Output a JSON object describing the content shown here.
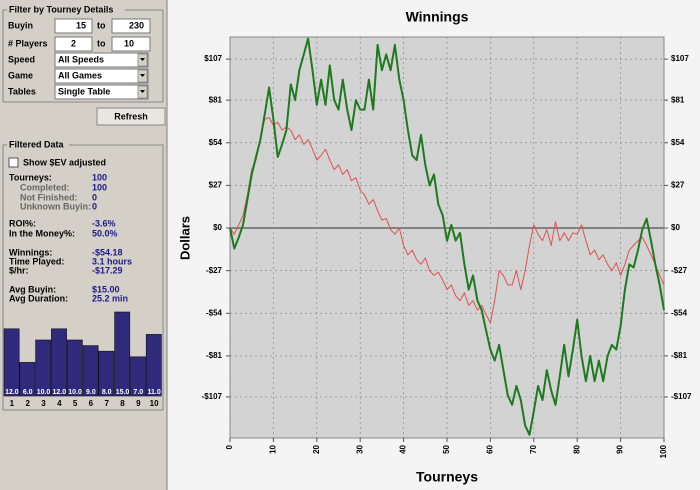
{
  "filter": {
    "title": "Filter by Tourney Details",
    "rows": [
      {
        "label": "Buyin",
        "from": "15",
        "to_label": "to",
        "to": "230"
      },
      {
        "label": "# Players",
        "from": "2",
        "to_label": "to",
        "to": "10"
      }
    ],
    "selects": [
      {
        "label": "Speed",
        "value": "All Speeds"
      },
      {
        "label": "Game",
        "value": "All Games"
      },
      {
        "label": "Tables",
        "value": "Single Table"
      }
    ],
    "refresh": "Refresh"
  },
  "filtered": {
    "title": "Filtered Data",
    "checkbox": "Show $EV adjusted",
    "stats": [
      {
        "label": "Tourneys:",
        "value": "100"
      },
      {
        "label": "Completed:",
        "value": "100"
      },
      {
        "label": "Not Finished:",
        "value": "0"
      },
      {
        "label": "Unknown Buyin:",
        "value": "0"
      },
      {
        "label": "ROI%:",
        "value": "-3.6%"
      },
      {
        "label": "In the Money%:",
        "value": "50.0%"
      },
      {
        "label": "Winnings:",
        "value": "-$54.18"
      },
      {
        "label": "Time Played:",
        "value": "3.1 hours"
      },
      {
        "label": "$/hr:",
        "value": "-$17.29"
      },
      {
        "label": "Avg Buyin:",
        "value": "$15.00"
      },
      {
        "label": "Avg Duration:",
        "value": "25.2 min"
      }
    ],
    "histogram": {
      "type": "bar",
      "categories": [
        "1",
        "2",
        "3",
        "4",
        "5",
        "6",
        "7",
        "8",
        "9",
        "10"
      ],
      "values": [
        12,
        6,
        10,
        12,
        10,
        9,
        8,
        15,
        7,
        11
      ],
      "value_labels": [
        "12.0",
        "6.0",
        "10.0",
        "12.0",
        "10.0",
        "9.0",
        "8.0",
        "15.0",
        "7.0",
        "11.0"
      ],
      "color": "#2f2a7c"
    }
  },
  "chart_data": {
    "type": "line",
    "title": "Winnings",
    "x_label": "Tourneys",
    "y_label": "Dollars",
    "x": [
      0,
      1,
      2,
      3,
      4,
      5,
      6,
      7,
      8,
      9,
      10,
      11,
      12,
      13,
      14,
      15,
      16,
      17,
      18,
      19,
      20,
      21,
      22,
      23,
      24,
      25,
      26,
      27,
      28,
      29,
      30,
      31,
      32,
      33,
      34,
      35,
      36,
      37,
      38,
      39,
      40,
      41,
      42,
      43,
      44,
      45,
      46,
      47,
      48,
      49,
      50,
      51,
      52,
      53,
      54,
      55,
      56,
      57,
      58,
      59,
      60,
      61,
      62,
      63,
      64,
      65,
      66,
      67,
      68,
      69,
      70,
      71,
      72,
      73,
      74,
      75,
      76,
      77,
      78,
      79,
      80,
      81,
      82,
      83,
      84,
      85,
      86,
      87,
      88,
      89,
      90,
      91,
      92,
      93,
      94,
      95,
      96,
      97,
      98,
      99,
      100
    ],
    "series": [
      {
        "color": "#1e7a1e",
        "values": [
          0,
          -13,
          -6,
          2,
          18,
          34,
          45,
          56,
          72,
          89,
          69,
          45,
          53,
          62,
          91,
          81,
          100,
          110,
          120,
          100,
          78,
          94,
          78,
          103,
          81,
          75,
          94,
          75,
          62,
          81,
          75,
          75,
          94,
          75,
          116,
          100,
          110,
          100,
          116,
          94,
          81,
          62,
          46,
          43,
          59,
          40,
          27,
          34,
          15,
          8,
          -8,
          2,
          -8,
          -3,
          -23,
          -39,
          -30,
          -46,
          -52,
          -65,
          -77,
          -84,
          -74,
          -90,
          -106,
          -112,
          -100,
          -109,
          -125,
          -131,
          -116,
          -100,
          -109,
          -90,
          -103,
          -112,
          -94,
          -74,
          -94,
          -77,
          -58,
          -81,
          -97,
          -81,
          -97,
          -84,
          -97,
          -81,
          -74,
          -77,
          -62,
          -39,
          -23,
          -25,
          -14,
          -1,
          6,
          -8,
          -23,
          -36,
          -52
        ]
      },
      {
        "color": "#e05050",
        "values": [
          0,
          -4,
          2,
          8,
          21,
          37,
          43,
          56,
          69,
          70,
          65,
          67,
          62,
          64,
          62,
          56,
          59,
          53,
          56,
          50,
          43,
          46,
          50,
          43,
          37,
          40,
          34,
          37,
          30,
          32,
          24,
          21,
          15,
          18,
          11,
          5,
          6,
          -1,
          -4,
          0,
          -11,
          -17,
          -14,
          -20,
          -23,
          -19,
          -27,
          -30,
          -28,
          -33,
          -39,
          -36,
          -43,
          -46,
          -41,
          -49,
          -46,
          -52,
          -49,
          -55,
          -60,
          -46,
          -27,
          -30,
          -36,
          -36,
          -27,
          -39,
          -27,
          -11,
          2,
          -4,
          -8,
          -1,
          -11,
          4,
          -8,
          -3,
          -8,
          -3,
          -4,
          2,
          -8,
          -17,
          -14,
          -20,
          -17,
          -23,
          -27,
          -22,
          -30,
          -23,
          -14,
          -11,
          -8,
          -6,
          -11,
          -17,
          -23,
          -30,
          -36
        ]
      }
    ],
    "xlim": [
      0,
      100
    ],
    "xticks": [
      0,
      10,
      20,
      30,
      40,
      50,
      60,
      70,
      80,
      90,
      100
    ],
    "ylim": [
      -133,
      121
    ],
    "yticks": [
      {
        "value": -107,
        "label": "-$107"
      },
      {
        "value": -81,
        "label": "-$81"
      },
      {
        "value": -54,
        "label": "-$54"
      },
      {
        "value": -27,
        "label": "-$27"
      },
      {
        "value": 0,
        "label": "$0"
      },
      {
        "value": 27,
        "label": "$27"
      },
      {
        "value": 54,
        "label": "$54"
      },
      {
        "value": 81,
        "label": "$81"
      },
      {
        "value": 107,
        "label": "$107"
      }
    ],
    "grid": true
  }
}
